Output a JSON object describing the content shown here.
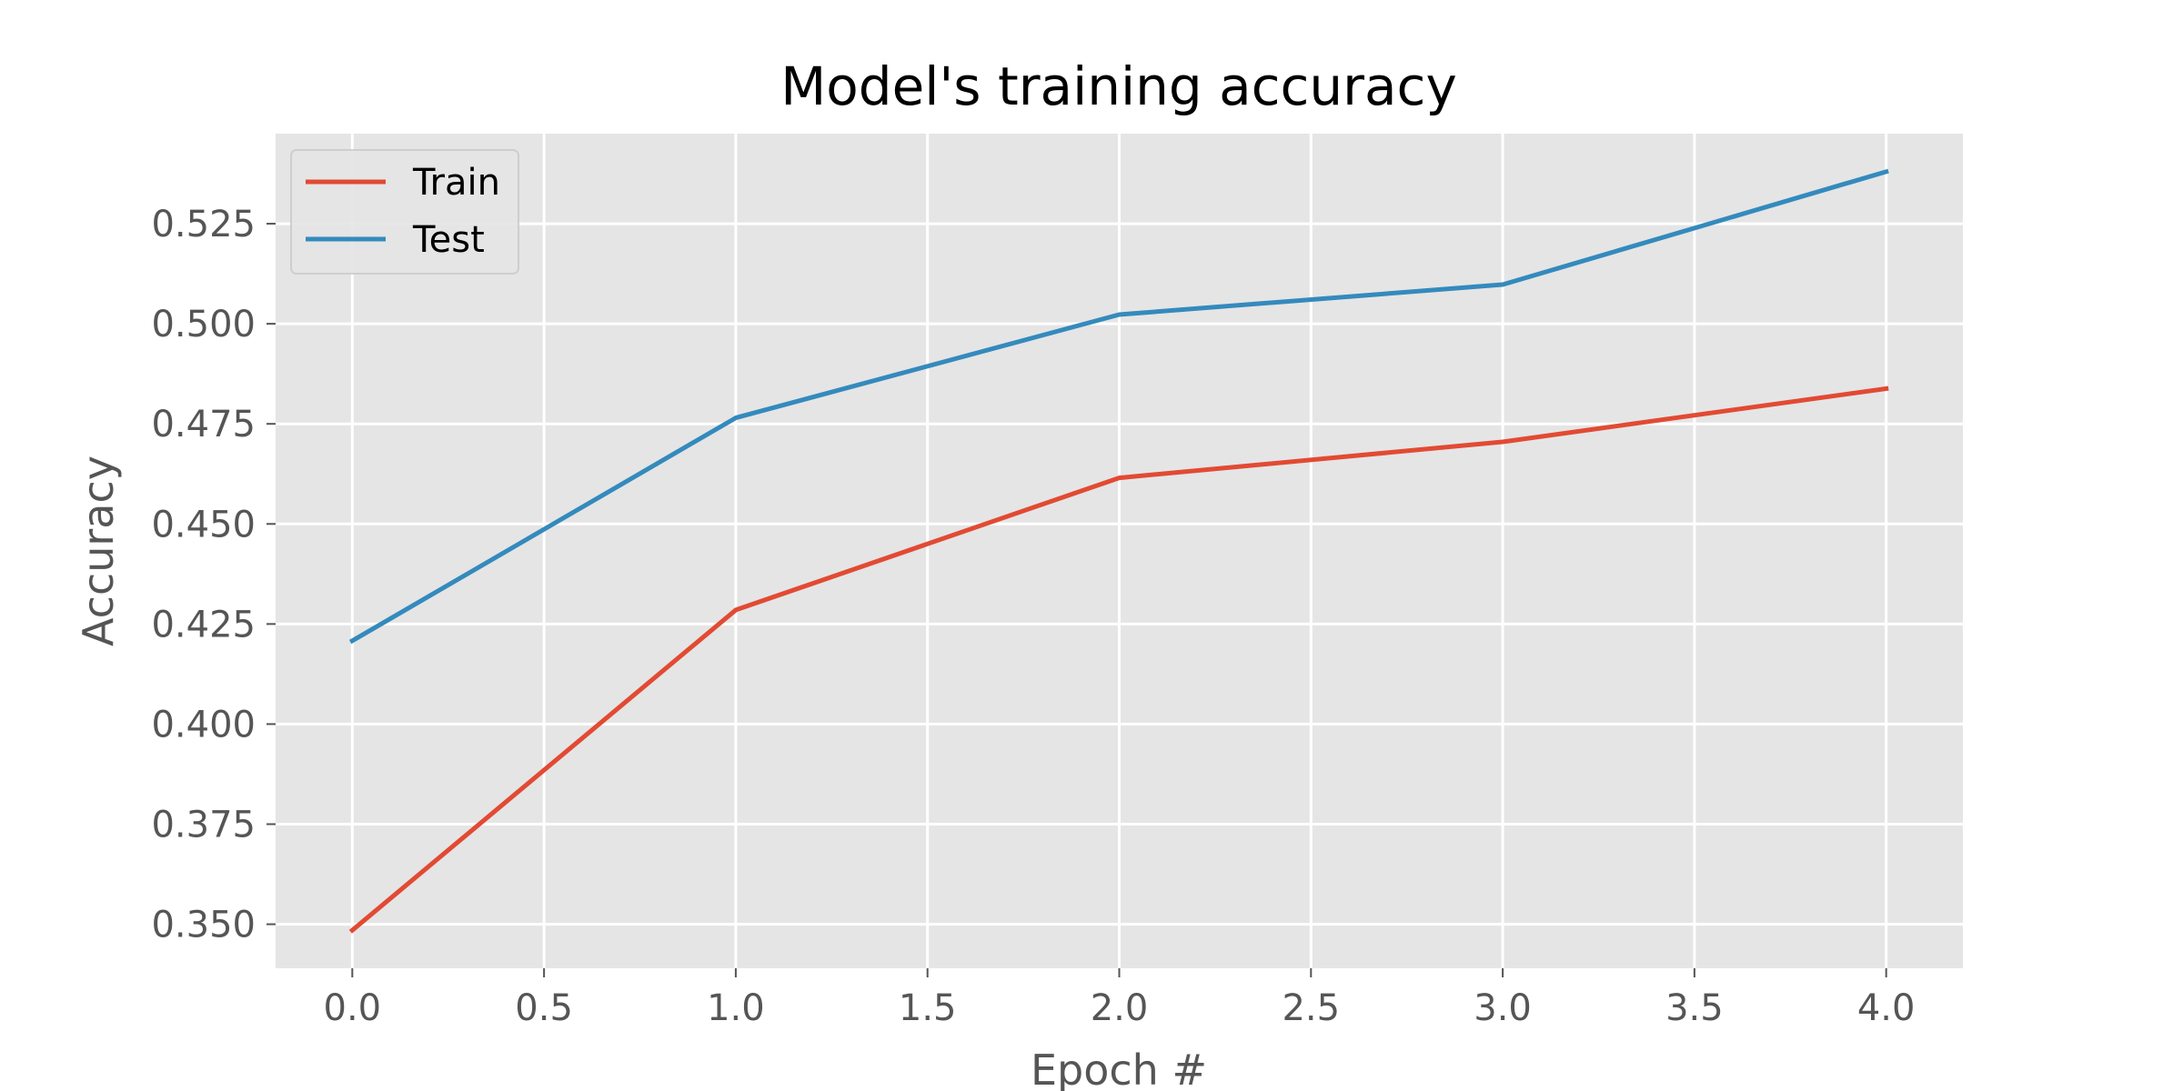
{
  "chart_data": {
    "type": "line",
    "title": "Model's training accuracy",
    "xlabel": "Epoch #",
    "ylabel": "Accuracy",
    "x": [
      0,
      1,
      2,
      3,
      4
    ],
    "series": [
      {
        "name": "Train",
        "color": "#E24A33",
        "values": [
          0.3485,
          0.4285,
          0.4615,
          0.4705,
          0.4838
        ]
      },
      {
        "name": "Test",
        "color": "#348ABD",
        "values": [
          0.4208,
          0.4765,
          0.5023,
          0.5098,
          0.538
        ]
      }
    ],
    "xlim": [
      -0.2,
      4.2
    ],
    "ylim": [
      0.339,
      0.5475
    ],
    "xticks": [
      0.0,
      0.5,
      1.0,
      1.5,
      2.0,
      2.5,
      3.0,
      3.5,
      4.0
    ],
    "xtick_labels": [
      "0.0",
      "0.5",
      "1.0",
      "1.5",
      "2.0",
      "2.5",
      "3.0",
      "3.5",
      "4.0"
    ],
    "yticks": [
      0.35,
      0.375,
      0.4,
      0.425,
      0.45,
      0.475,
      0.5,
      0.525
    ],
    "ytick_labels": [
      "0.350",
      "0.375",
      "0.400",
      "0.425",
      "0.450",
      "0.475",
      "0.500",
      "0.525"
    ],
    "grid": true,
    "legend_position": "top-left",
    "style": {
      "plot_background": "#E5E5E5",
      "grid_color": "#FFFFFF",
      "tick_color": "#555555"
    }
  }
}
